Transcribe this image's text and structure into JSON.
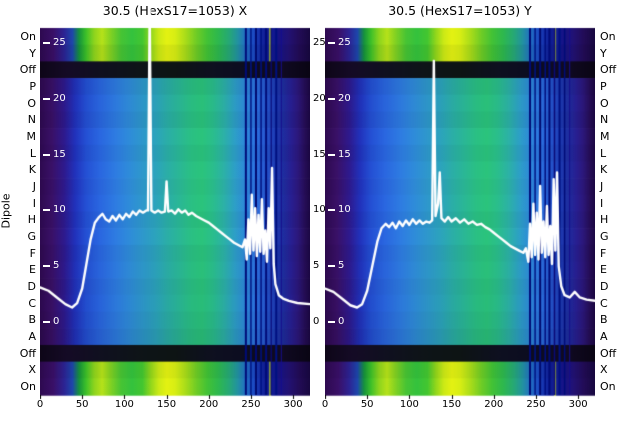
{
  "chart_data": {
    "type": "heatmap",
    "y_axis_title": "Dipole",
    "x_ticks": [
      0,
      50,
      100,
      150,
      200,
      250,
      300
    ],
    "x_range": [
      0,
      320
    ],
    "curve_ticks": [
      25,
      20,
      15,
      10,
      5,
      0
    ],
    "curve_range": [
      0,
      25
    ],
    "curve_color": "#ffffff",
    "background": "#ffffff",
    "row_labels": [
      "On",
      "Y",
      "Off",
      "P",
      "O",
      "N",
      "M",
      "L",
      "K",
      "J",
      "I",
      "H",
      "G",
      "F",
      "E",
      "D",
      "C",
      "B",
      "A",
      "Off",
      "X",
      "On"
    ],
    "row_palette_map": [
      "bright",
      "bright",
      "off",
      "body",
      "body",
      "body",
      "body",
      "body",
      "body",
      "body",
      "body",
      "body",
      "body",
      "body",
      "body",
      "body",
      "body",
      "body",
      "body",
      "off",
      "bright",
      "bright"
    ],
    "row_shade": [
      0,
      0.05,
      0,
      0.06,
      0.02,
      0.05,
      0,
      0.03,
      0,
      0.02,
      0,
      0.03,
      0,
      0.04,
      0.02,
      0.05,
      0.03,
      0.06,
      0.09,
      0,
      0.04,
      0
    ],
    "palettes": {
      "body": [
        [
          0.0,
          "#2e0a50"
        ],
        [
          0.045,
          "#3a1168"
        ],
        [
          0.09,
          "#2e1a8e"
        ],
        [
          0.13,
          "#2132bc"
        ],
        [
          0.17,
          "#2450d4"
        ],
        [
          0.22,
          "#2a66e0"
        ],
        [
          0.28,
          "#2e7ce2"
        ],
        [
          0.33,
          "#2f8cda"
        ],
        [
          0.38,
          "#2e98cc"
        ],
        [
          0.43,
          "#2ca4bc"
        ],
        [
          0.47,
          "#2baea8"
        ],
        [
          0.52,
          "#2ab894"
        ],
        [
          0.56,
          "#2ac084"
        ],
        [
          0.6,
          "#2bc47c"
        ],
        [
          0.64,
          "#2abe8c"
        ],
        [
          0.68,
          "#2cb2a6"
        ],
        [
          0.72,
          "#2da0c6"
        ],
        [
          0.76,
          "#2e8ada"
        ],
        [
          0.8,
          "#2c70e0"
        ],
        [
          0.84,
          "#2654cc"
        ],
        [
          0.87,
          "#1e3cb4"
        ],
        [
          0.9,
          "#1e2ea0"
        ],
        [
          0.93,
          "#281f92"
        ],
        [
          0.955,
          "#2c187c"
        ],
        [
          0.98,
          "#260e58"
        ],
        [
          1.0,
          "#1c0844"
        ]
      ],
      "bright": [
        [
          0.0,
          "#2e0a50"
        ],
        [
          0.05,
          "#3a1068"
        ],
        [
          0.09,
          "#2c2494"
        ],
        [
          0.12,
          "#1e46ac"
        ],
        [
          0.145,
          "#16933c"
        ],
        [
          0.17,
          "#3cc02a"
        ],
        [
          0.2,
          "#8cd41e"
        ],
        [
          0.23,
          "#b6e21a"
        ],
        [
          0.26,
          "#84d222"
        ],
        [
          0.3,
          "#48c434"
        ],
        [
          0.34,
          "#34c23e"
        ],
        [
          0.38,
          "#44c630"
        ],
        [
          0.41,
          "#90d61c"
        ],
        [
          0.44,
          "#ccea16"
        ],
        [
          0.47,
          "#e4f212"
        ],
        [
          0.5,
          "#d8ee14"
        ],
        [
          0.54,
          "#a8dc1a"
        ],
        [
          0.58,
          "#6ecc26"
        ],
        [
          0.62,
          "#42c236"
        ],
        [
          0.66,
          "#2eb84e"
        ],
        [
          0.7,
          "#26a876"
        ],
        [
          0.73,
          "#22949e"
        ],
        [
          0.76,
          "#2272c2"
        ],
        [
          0.79,
          "#1c4cc4"
        ],
        [
          0.81,
          "#1632ac"
        ],
        [
          0.835,
          "#101c94"
        ],
        [
          0.846,
          "#101c94"
        ],
        [
          0.852,
          "#c4da1c"
        ],
        [
          0.858,
          "#101c94"
        ],
        [
          0.88,
          "#161488"
        ],
        [
          0.92,
          "#221274"
        ],
        [
          0.96,
          "#220c56"
        ],
        [
          1.0,
          "#180840"
        ]
      ],
      "off": [
        [
          0.0,
          "#0e0618"
        ],
        [
          0.1,
          "#150b26"
        ],
        [
          0.22,
          "#101020"
        ],
        [
          0.36,
          "#0e1418"
        ],
        [
          0.5,
          "#0d1414"
        ],
        [
          0.64,
          "#0e1020"
        ],
        [
          0.78,
          "#0c0c20"
        ],
        [
          0.9,
          "#100a22"
        ],
        [
          1.0,
          "#0a0514"
        ]
      ]
    },
    "panels": [
      {
        "title": "30.5 (HexS17=1053) X",
        "stripes": [
          [
            244,
            2,
            "#000c78"
          ],
          [
            250,
            1.5,
            "#001484"
          ],
          [
            256,
            2,
            "#000a70"
          ],
          [
            262,
            1.5,
            "#001080"
          ],
          [
            268,
            2,
            "#000c78"
          ],
          [
            274,
            1.2,
            "#0a0a78"
          ],
          [
            280,
            2,
            "#001080"
          ],
          [
            286,
            1,
            "#160e8c"
          ]
        ],
        "curve": [
          [
            0,
            3.1
          ],
          [
            10,
            2.8
          ],
          [
            20,
            2.2
          ],
          [
            30,
            1.6
          ],
          [
            38,
            1.3
          ],
          [
            44,
            1.7
          ],
          [
            50,
            3.0
          ],
          [
            55,
            5.2
          ],
          [
            60,
            7.4
          ],
          [
            65,
            8.9
          ],
          [
            70,
            9.4
          ],
          [
            74,
            9.7
          ],
          [
            78,
            9.2
          ],
          [
            82,
            9.0
          ],
          [
            86,
            9.5
          ],
          [
            90,
            9.1
          ],
          [
            94,
            9.6
          ],
          [
            98,
            9.2
          ],
          [
            102,
            9.7
          ],
          [
            106,
            9.4
          ],
          [
            110,
            9.9
          ],
          [
            114,
            9.6
          ],
          [
            118,
            10.0
          ],
          [
            122,
            9.8
          ],
          [
            126,
            10.0
          ],
          [
            128,
            10.0
          ],
          [
            130,
            28.0
          ],
          [
            132,
            10.0
          ],
          [
            136,
            9.8
          ],
          [
            140,
            10.0
          ],
          [
            144,
            9.8
          ],
          [
            148,
            9.9
          ],
          [
            150,
            12.6
          ],
          [
            152,
            9.9
          ],
          [
            156,
            10.0
          ],
          [
            160,
            9.7
          ],
          [
            164,
            10.1
          ],
          [
            168,
            9.8
          ],
          [
            172,
            10.0
          ],
          [
            176,
            9.6
          ],
          [
            180,
            9.8
          ],
          [
            185,
            9.5
          ],
          [
            190,
            9.3
          ],
          [
            195,
            9.1
          ],
          [
            200,
            8.9
          ],
          [
            205,
            8.6
          ],
          [
            210,
            8.3
          ],
          [
            215,
            8.0
          ],
          [
            220,
            7.7
          ],
          [
            225,
            7.4
          ],
          [
            230,
            7.1
          ],
          [
            235,
            6.9
          ],
          [
            240,
            6.7
          ],
          [
            243,
            7.4
          ],
          [
            245,
            5.6
          ],
          [
            247,
            9.2
          ],
          [
            249,
            6.1
          ],
          [
            251,
            11.4
          ],
          [
            253,
            6.4
          ],
          [
            255,
            10.2
          ],
          [
            257,
            5.9
          ],
          [
            259,
            9.6
          ],
          [
            261,
            6.3
          ],
          [
            263,
            11.0
          ],
          [
            265,
            6.1
          ],
          [
            267,
            8.2
          ],
          [
            269,
            5.4
          ],
          [
            271,
            10.2
          ],
          [
            273,
            6.6
          ],
          [
            275,
            13.8
          ],
          [
            277,
            5.2
          ],
          [
            279,
            3.4
          ],
          [
            283,
            2.4
          ],
          [
            288,
            2.1
          ],
          [
            295,
            1.9
          ],
          [
            305,
            1.7
          ],
          [
            320,
            1.6
          ]
        ]
      },
      {
        "title": "30.5 (HexS17=1053) Y",
        "stripes": [
          [
            243,
            2,
            "#000c78"
          ],
          [
            249,
            1.5,
            "#001484"
          ],
          [
            255,
            2,
            "#000a70"
          ],
          [
            261,
            1.5,
            "#001080"
          ],
          [
            266,
            2,
            "#000c78"
          ],
          [
            272,
            1.5,
            "#0a0a78"
          ],
          [
            278,
            2,
            "#001080"
          ],
          [
            284,
            1.5,
            "#000c78"
          ],
          [
            290,
            1,
            "#160e8c"
          ]
        ],
        "curve": [
          [
            0,
            3.0
          ],
          [
            10,
            2.7
          ],
          [
            20,
            2.1
          ],
          [
            30,
            1.5
          ],
          [
            38,
            1.3
          ],
          [
            44,
            1.6
          ],
          [
            50,
            2.8
          ],
          [
            56,
            5.0
          ],
          [
            62,
            7.2
          ],
          [
            67,
            8.4
          ],
          [
            72,
            8.8
          ],
          [
            76,
            8.5
          ],
          [
            80,
            8.9
          ],
          [
            84,
            8.4
          ],
          [
            88,
            9.0
          ],
          [
            92,
            8.6
          ],
          [
            96,
            9.1
          ],
          [
            100,
            8.7
          ],
          [
            104,
            9.2
          ],
          [
            108,
            8.8
          ],
          [
            112,
            9.1
          ],
          [
            116,
            8.8
          ],
          [
            120,
            9.0
          ],
          [
            124,
            8.9
          ],
          [
            127,
            9.1
          ],
          [
            129,
            23.4
          ],
          [
            131,
            9.5
          ],
          [
            134,
            10.6
          ],
          [
            136,
            13.4
          ],
          [
            138,
            9.3
          ],
          [
            142,
            9.0
          ],
          [
            146,
            9.4
          ],
          [
            150,
            9.0
          ],
          [
            155,
            9.3
          ],
          [
            160,
            8.9
          ],
          [
            165,
            9.2
          ],
          [
            170,
            8.8
          ],
          [
            175,
            9.0
          ],
          [
            180,
            8.7
          ],
          [
            185,
            8.8
          ],
          [
            190,
            8.5
          ],
          [
            195,
            8.3
          ],
          [
            200,
            8.0
          ],
          [
            205,
            7.7
          ],
          [
            210,
            7.4
          ],
          [
            215,
            7.1
          ],
          [
            220,
            6.8
          ],
          [
            225,
            6.6
          ],
          [
            230,
            6.4
          ],
          [
            235,
            6.2
          ],
          [
            238,
            6.6
          ],
          [
            241,
            5.4
          ],
          [
            243,
            8.8
          ],
          [
            245,
            5.8
          ],
          [
            247,
            10.6
          ],
          [
            249,
            6.0
          ],
          [
            251,
            9.8
          ],
          [
            253,
            5.6
          ],
          [
            255,
            12.2
          ],
          [
            257,
            6.2
          ],
          [
            259,
            9.0
          ],
          [
            261,
            5.8
          ],
          [
            263,
            10.4
          ],
          [
            265,
            6.0
          ],
          [
            267,
            8.6
          ],
          [
            269,
            5.2
          ],
          [
            271,
            12.8
          ],
          [
            273,
            6.4
          ],
          [
            275,
            13.4
          ],
          [
            277,
            5.0
          ],
          [
            280,
            3.2
          ],
          [
            284,
            2.4
          ],
          [
            290,
            2.2
          ],
          [
            296,
            2.7
          ],
          [
            302,
            2.2
          ],
          [
            310,
            2.0
          ],
          [
            320,
            1.9
          ]
        ]
      }
    ]
  }
}
